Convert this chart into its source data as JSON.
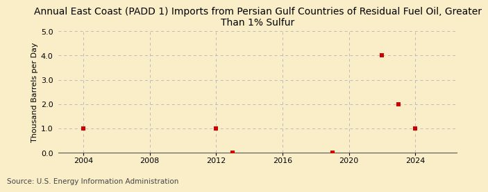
{
  "title": "Annual East Coast (PADD 1) Imports from Persian Gulf Countries of Residual Fuel Oil, Greater\nThan 1% Sulfur",
  "ylabel": "Thousand Barrels per Day",
  "source": "Source: U.S. Energy Information Administration",
  "background_color": "#faeec8",
  "plot_background_color": "#faeec8",
  "xlim": [
    2002.5,
    2026.5
  ],
  "ylim": [
    0.0,
    5.0
  ],
  "yticks": [
    0.0,
    1.0,
    2.0,
    3.0,
    4.0,
    5.0
  ],
  "xticks": [
    2004,
    2008,
    2012,
    2016,
    2020,
    2024
  ],
  "data_x": [
    2004,
    2012,
    2013,
    2019,
    2022,
    2023,
    2024
  ],
  "data_y": [
    1.0,
    1.0,
    0.02,
    0.02,
    4.0,
    2.0,
    1.0
  ],
  "marker_color": "#cc0000",
  "marker_size": 4,
  "grid_color": "#bbbbbb",
  "title_fontsize": 10,
  "axis_fontsize": 8,
  "tick_fontsize": 8,
  "source_fontsize": 7.5
}
